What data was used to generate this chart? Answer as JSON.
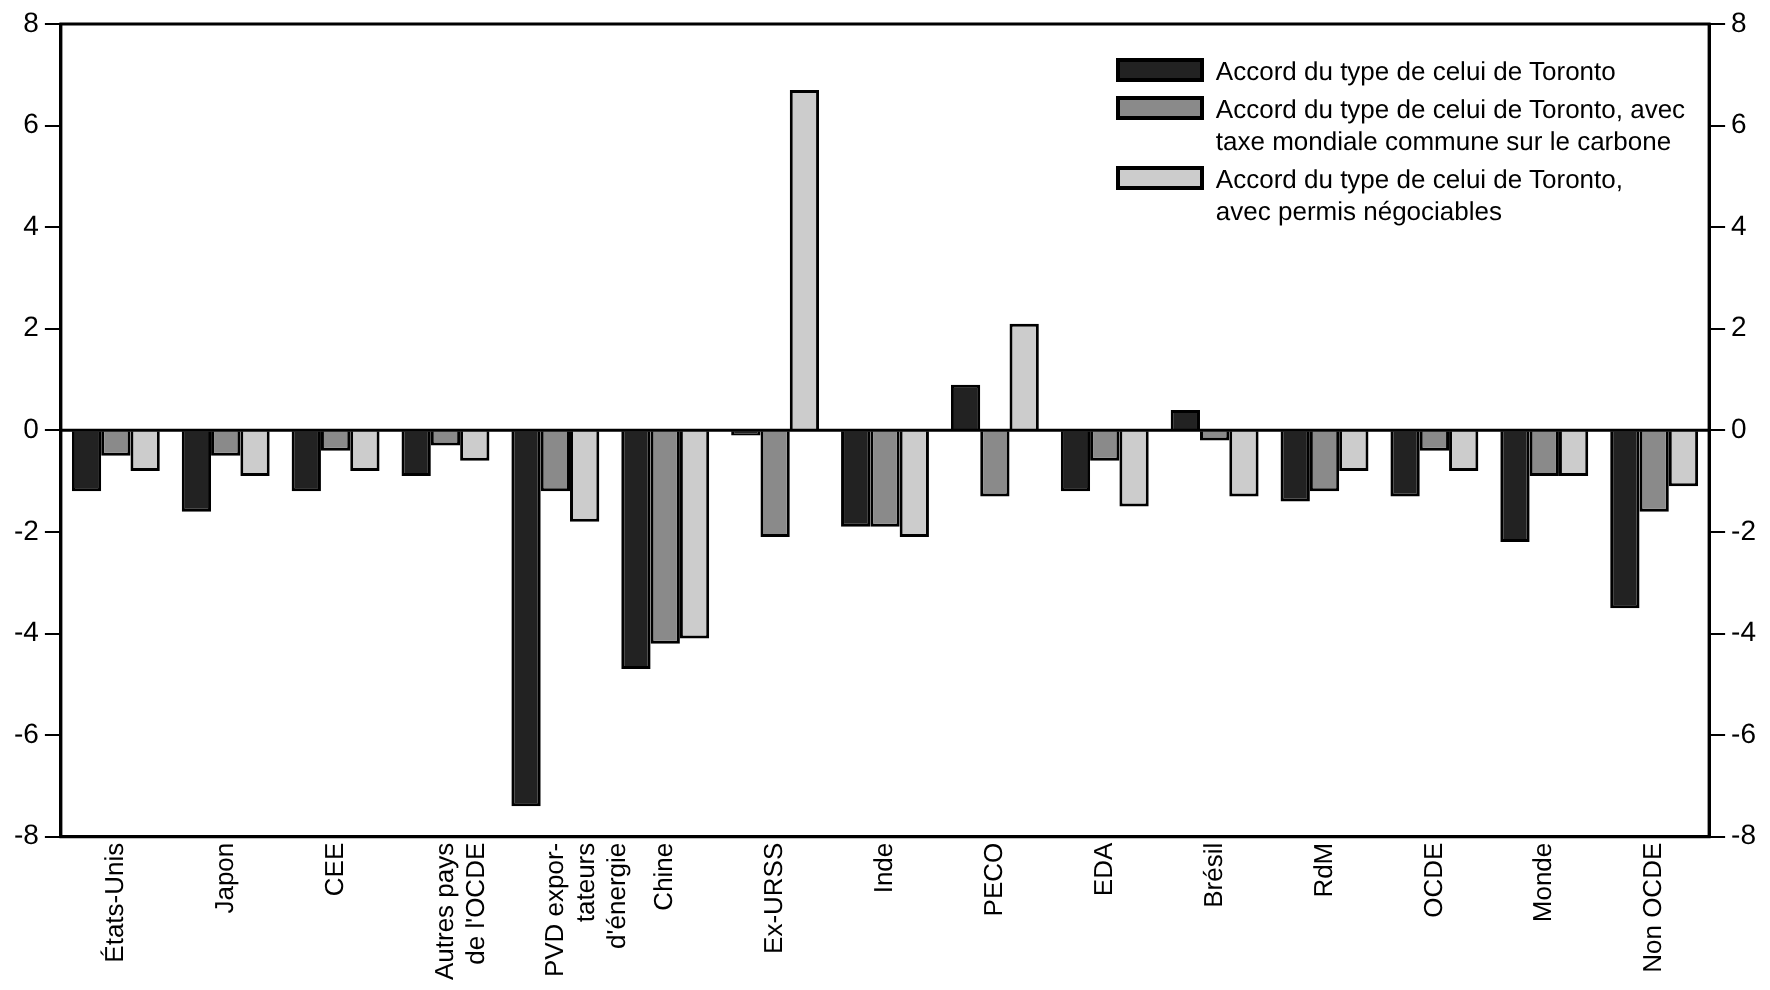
{
  "chart_data": {
    "type": "bar",
    "categories": [
      "États-Unis",
      "Japon",
      "CEE",
      "Autres pays\nde l'OCDE",
      "PVD expor-\ntateurs\nd'énergie",
      "Chine",
      "Ex-URSS",
      "Inde",
      "PECO",
      "EDA",
      "Brésil",
      "RdM",
      "OCDE",
      "Monde",
      "Non OCDE"
    ],
    "series": [
      {
        "name": "Accord du type de celui de Toronto",
        "color": "#222222",
        "values": [
          -1.2,
          -1.6,
          -1.2,
          -0.9,
          -7.4,
          -4.7,
          -0.1,
          -1.9,
          0.9,
          -1.2,
          0.4,
          -1.4,
          -1.3,
          -2.2,
          -3.5
        ]
      },
      {
        "name": "Accord du type de celui de Toronto, avec\ntaxe mondiale commune sur le carbone",
        "color": "#8a8a8a",
        "values": [
          -0.5,
          -0.5,
          -0.4,
          -0.3,
          -1.2,
          -4.2,
          -2.1,
          -1.9,
          -1.3,
          -0.6,
          -0.2,
          -1.2,
          -0.4,
          -0.9,
          -1.6
        ]
      },
      {
        "name": "Accord du type de celui de Toronto,\navec permis négociables",
        "color": "#cccccc",
        "values": [
          -0.8,
          -0.9,
          -0.8,
          -0.6,
          -1.8,
          -4.1,
          6.7,
          -2.1,
          2.1,
          -1.5,
          -1.3,
          -0.8,
          -0.8,
          -0.9,
          -1.1
        ]
      }
    ],
    "ylim": [
      -8,
      8
    ],
    "yticks": [
      -8,
      -6,
      -4,
      -2,
      0,
      2,
      4,
      6,
      8
    ],
    "y2lim": [
      -8,
      8
    ],
    "y2ticks": [
      -8,
      -6,
      -4,
      -2,
      0,
      2,
      4,
      6,
      8
    ],
    "ref_lines": [
      {
        "axis": "y",
        "value": 0
      }
    ],
    "grid": false,
    "legend": "top right"
  }
}
